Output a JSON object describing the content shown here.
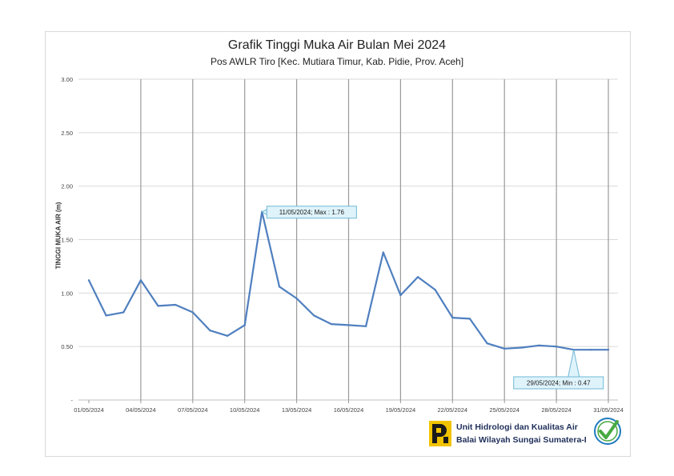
{
  "chart_data": {
    "type": "line",
    "title": "Grafik Tinggi Muka Air Bulan Mei 2024",
    "subtitle": "Pos AWLR Tiro [Kec. Mutiara Timur, Kab. Pidie, Prov. Aceh]",
    "xlabel": "",
    "ylabel": "TINGGI MUKA AIR (m)",
    "ylim": [
      0,
      3
    ],
    "yticks": [
      {
        "value": 0,
        "label": "-"
      },
      {
        "value": 0.5,
        "label": "0.50"
      },
      {
        "value": 1.0,
        "label": "1.00"
      },
      {
        "value": 1.5,
        "label": "1.50"
      },
      {
        "value": 2.0,
        "label": "2.00"
      },
      {
        "value": 2.5,
        "label": "2.50"
      },
      {
        "value": 3.0,
        "label": "3.00"
      }
    ],
    "xticks": [
      {
        "day": 1,
        "label": "01/05/2024"
      },
      {
        "day": 4,
        "label": "04/05/2024"
      },
      {
        "day": 7,
        "label": "07/05/2024"
      },
      {
        "day": 10,
        "label": "10/05/2024"
      },
      {
        "day": 13,
        "label": "13/05/2024"
      },
      {
        "day": 16,
        "label": "16/05/2024"
      },
      {
        "day": 19,
        "label": "19/05/2024"
      },
      {
        "day": 22,
        "label": "22/05/2024"
      },
      {
        "day": 25,
        "label": "25/05/2024"
      },
      {
        "day": 28,
        "label": "28/05/2024"
      },
      {
        "day": 31,
        "label": "31/05/2024"
      }
    ],
    "xlim": [
      1,
      31
    ],
    "series": [
      {
        "name": "Tinggi Muka Air",
        "color": "#4f7fbf",
        "x": [
          1,
          2,
          3,
          4,
          5,
          6,
          7,
          8,
          9,
          10,
          11,
          12,
          13,
          14,
          15,
          16,
          17,
          18,
          19,
          20,
          21,
          22,
          23,
          24,
          25,
          26,
          27,
          28,
          29,
          30,
          31
        ],
        "values": [
          1.12,
          0.79,
          0.82,
          1.12,
          0.88,
          0.89,
          0.82,
          0.65,
          0.6,
          0.7,
          1.76,
          1.06,
          0.95,
          0.79,
          0.71,
          0.7,
          0.69,
          1.38,
          0.98,
          1.15,
          1.03,
          0.77,
          0.76,
          0.53,
          0.48,
          0.49,
          0.51,
          0.5,
          0.47,
          0.47,
          0.47
        ]
      }
    ],
    "annotations": [
      {
        "day": 11,
        "value": 1.76,
        "label": "11/05/2024; Max : 1.76",
        "placement": "right"
      },
      {
        "day": 29,
        "value": 0.47,
        "label": "29/05/2024; Min : 0.47",
        "placement": "below"
      }
    ]
  },
  "footer": {
    "line1": "Unit Hidrologi dan Kualitas Air",
    "line2": "Balai Wilayah Sungai Sumatera-I"
  },
  "colors": {
    "line": "#4f7fbf",
    "callout_fill": "#dff3fb",
    "callout_stroke": "#6fb8d6",
    "logo_yellow": "#f2c300",
    "badge_green": "#49a942",
    "badge_blue": "#1f7bbf"
  }
}
